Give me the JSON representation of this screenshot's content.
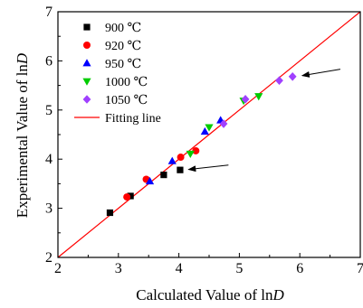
{
  "chart_data": {
    "type": "scatter",
    "xlabel": "Calculated Value of ln",
    "xlabel_italic": "D",
    "ylabel": "Experimental Value of ln",
    "ylabel_italic": "D",
    "xlim": [
      2,
      7
    ],
    "ylim": [
      2,
      7
    ],
    "xticks": [
      "2",
      "3",
      "4",
      "5",
      "6",
      "7"
    ],
    "yticks": [
      "2",
      "3",
      "4",
      "5",
      "6",
      "7"
    ],
    "grid": false,
    "legend_position": "top-left",
    "series": [
      {
        "name": "900 ℃",
        "marker": "square",
        "color": "#000000",
        "points": [
          [
            2.86,
            2.91
          ],
          [
            3.2,
            3.25
          ],
          [
            3.75,
            3.68
          ],
          [
            4.02,
            3.78
          ]
        ]
      },
      {
        "name": "920 ℃",
        "marker": "circle",
        "color": "#ff0000",
        "points": [
          [
            3.14,
            3.23
          ],
          [
            3.46,
            3.59
          ],
          [
            4.03,
            4.04
          ],
          [
            4.28,
            4.17
          ]
        ]
      },
      {
        "name": "950 ℃",
        "marker": "triangle-up",
        "color": "#0000ff",
        "points": [
          [
            3.52,
            3.55
          ],
          [
            3.89,
            3.96
          ],
          [
            4.43,
            4.56
          ],
          [
            4.69,
            4.79
          ]
        ]
      },
      {
        "name": "1000 ℃",
        "marker": "triangle-down",
        "color": "#00cc00",
        "points": [
          [
            4.19,
            4.11
          ],
          [
            4.5,
            4.65
          ],
          [
            5.07,
            5.19
          ],
          [
            5.32,
            5.28
          ]
        ]
      },
      {
        "name": "1050 ℃",
        "marker": "diamond",
        "color": "#a040ff",
        "points": [
          [
            4.74,
            4.72
          ],
          [
            5.1,
            5.22
          ],
          [
            5.66,
            5.6
          ],
          [
            5.88,
            5.68
          ]
        ]
      }
    ],
    "fitting_line": {
      "name": "Fitting line",
      "color": "#ff0000",
      "from": [
        2,
        2
      ],
      "to": [
        7,
        7
      ]
    },
    "annotations": [
      {
        "type": "arrow",
        "from": [
          6.67,
          5.83
        ],
        "to": [
          6.04,
          5.7
        ]
      },
      {
        "type": "arrow",
        "from": [
          4.82,
          3.88
        ],
        "to": [
          4.16,
          3.79
        ]
      }
    ]
  }
}
